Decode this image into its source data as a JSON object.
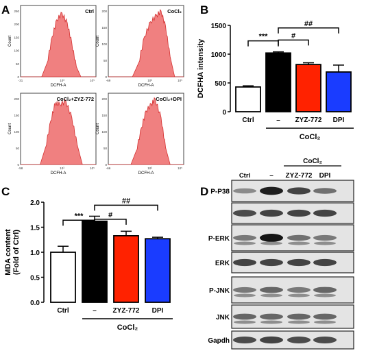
{
  "panel_letters": {
    "a": "A",
    "b": "B",
    "c": "C",
    "d": "D"
  },
  "flow_panels": [
    {
      "label": "Ctrl",
      "x_axis_label": "DCFH-A",
      "y_axis_label": "Count",
      "x_ticks": [
        "-31",
        "10³",
        "10⁵"
      ],
      "y_ticks": [
        "0",
        "50",
        "100",
        "150",
        "200",
        "250"
      ]
    },
    {
      "label": "CoCl₂",
      "x_axis_label": "DCFH-A",
      "y_axis_label": "Count",
      "x_ticks": [
        "-69",
        "10³",
        "10⁵"
      ],
      "y_ticks": [
        "0",
        "50",
        "100",
        "150",
        "200"
      ]
    },
    {
      "label": "CoCl₂+ZYZ-772",
      "x_axis_label": "DCFH-A",
      "y_axis_label": "Count",
      "x_ticks": [
        "-58",
        "10³",
        "10⁵"
      ],
      "y_ticks": [
        "0",
        "50",
        "100",
        "150",
        "200"
      ]
    },
    {
      "label": "CoCl₂+DPI",
      "x_axis_label": "DCFH-A",
      "y_axis_label": "Count",
      "x_ticks": [
        "-66",
        "10³",
        "10⁵"
      ],
      "y_ticks": [
        "0",
        "50",
        "100",
        "150",
        "200"
      ]
    }
  ],
  "chart_data": [
    {
      "type": "bar",
      "panel": "B",
      "categories": [
        "Ctrl",
        "–",
        "ZYZ-772",
        "DPI"
      ],
      "values": [
        430,
        1020,
        820,
        690
      ],
      "errors": [
        20,
        20,
        30,
        120
      ],
      "colors": [
        "#ffffff",
        "#000000",
        "#ff2200",
        "#1a3cff"
      ],
      "ylabel": "DCFHA intensity",
      "ylim": [
        0,
        1500
      ],
      "yticks": [
        0,
        500,
        1000,
        1500
      ],
      "group_label": "CoCl₂",
      "significance": [
        {
          "from": 0,
          "to": 1,
          "label": "***"
        },
        {
          "from": 1,
          "to": 2,
          "label": "#"
        },
        {
          "from": 1,
          "to": 3,
          "label": "##"
        }
      ]
    },
    {
      "type": "bar",
      "panel": "C",
      "categories": [
        "Ctrl",
        "–",
        "ZYZ-772",
        "DPI"
      ],
      "values": [
        1.0,
        1.62,
        1.33,
        1.27
      ],
      "errors": [
        0.12,
        0.1,
        0.09,
        0.03
      ],
      "colors": [
        "#ffffff",
        "#000000",
        "#ff2200",
        "#1a3cff"
      ],
      "ylabel": "MDA content\n(Fold of Ctrl)",
      "ylim": [
        0,
        2.0
      ],
      "yticks": [
        "0.0",
        "0.5",
        "1.0",
        "1.5",
        "2.0"
      ],
      "group_label": "CoCl₂",
      "significance": [
        {
          "from": 0,
          "to": 1,
          "label": "***"
        },
        {
          "from": 1,
          "to": 2,
          "label": "#"
        },
        {
          "from": 1,
          "to": 3,
          "label": "##"
        }
      ]
    }
  ],
  "western": {
    "header_ctrl": "Ctrl",
    "header_group": "CoCl₂",
    "lanes": [
      "–",
      "ZYZ-772",
      "DPI"
    ],
    "blots": [
      {
        "label": "P-P38",
        "bands": [
          0.35,
          0.95,
          0.75,
          0.5
        ]
      },
      {
        "label": "",
        "bands": [
          0.7,
          0.75,
          0.75,
          0.75
        ]
      },
      {
        "label": "P-ERK",
        "bands": [
          0.45,
          1.0,
          0.5,
          0.45
        ]
      },
      {
        "label": "ERK",
        "bands": [
          0.75,
          0.75,
          0.75,
          0.75
        ]
      },
      {
        "label": "P-JNK",
        "bands": [
          0.45,
          0.55,
          0.45,
          0.55
        ]
      },
      {
        "label": "JNK",
        "bands": [
          0.55,
          0.55,
          0.55,
          0.55
        ]
      },
      {
        "label": "Gapdh",
        "bands": [
          0.7,
          0.75,
          0.7,
          0.7
        ]
      }
    ]
  }
}
